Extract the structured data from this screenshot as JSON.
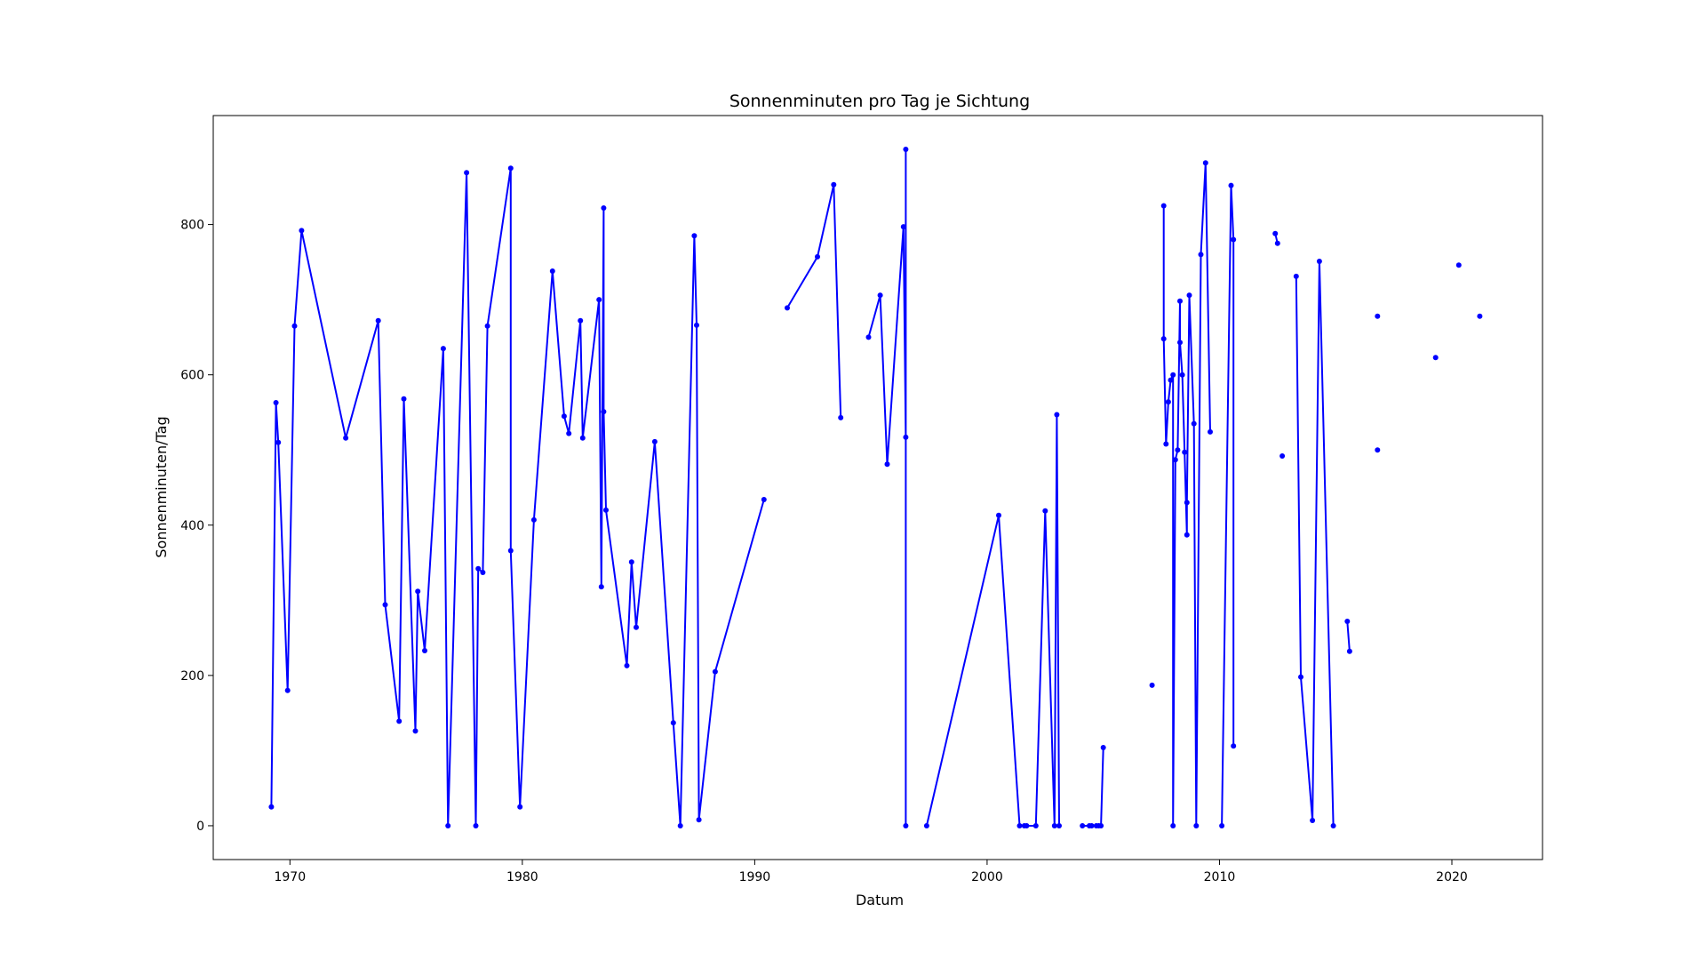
{
  "chart_data": {
    "type": "line",
    "title": "Sonnenminuten pro Tag je Sichtung",
    "xlabel": "Datum",
    "ylabel": "Sonnenminuten/Tag",
    "xlim": [
      1966.7,
      2023.9
    ],
    "ylim": [
      -45,
      945
    ],
    "x_ticks": [
      1970,
      1980,
      1990,
      2000,
      2010,
      2020
    ],
    "y_ticks": [
      0,
      200,
      400,
      600,
      800
    ],
    "grid": false,
    "legend": "none",
    "series_color": "#0000ff",
    "note_gaps": "segments are separated where the original plot shows breaks in the line",
    "segments": [
      [
        [
          1969.2,
          25
        ],
        [
          1969.4,
          563
        ],
        [
          1969.5,
          510
        ],
        [
          1969.9,
          180
        ],
        [
          1970.2,
          665
        ],
        [
          1970.5,
          792
        ],
        [
          1972.4,
          516
        ],
        [
          1973.8,
          672
        ],
        [
          1974.1,
          294
        ],
        [
          1974.7,
          139
        ],
        [
          1974.9,
          568
        ],
        [
          1975.4,
          126
        ],
        [
          1975.5,
          312
        ],
        [
          1975.8,
          233
        ],
        [
          1976.6,
          635
        ],
        [
          1976.8,
          0
        ],
        [
          1977.6,
          869
        ],
        [
          1978.0,
          0
        ],
        [
          1978.1,
          342
        ],
        [
          1978.3,
          337
        ],
        [
          1978.5,
          665
        ],
        [
          1979.5,
          875
        ],
        [
          1979.5,
          366
        ],
        [
          1979.9,
          25
        ],
        [
          1980.5,
          407
        ],
        [
          1981.3,
          738
        ],
        [
          1981.8,
          545
        ],
        [
          1982.0,
          522
        ],
        [
          1982.5,
          672
        ],
        [
          1982.6,
          516
        ],
        [
          1983.3,
          700
        ],
        [
          1983.4,
          318
        ],
        [
          1983.5,
          822
        ],
        [
          1983.5,
          551
        ],
        [
          1983.6,
          420
        ],
        [
          1984.5,
          213
        ],
        [
          1984.7,
          351
        ],
        [
          1984.9,
          264
        ],
        [
          1985.7,
          511
        ],
        [
          1986.5,
          137
        ],
        [
          1986.8,
          0
        ],
        [
          1987.4,
          785
        ],
        [
          1987.5,
          666
        ],
        [
          1987.6,
          8
        ],
        [
          1988.3,
          205
        ],
        [
          1990.4,
          434
        ]
      ],
      [
        [
          1991.4,
          689
        ],
        [
          1992.7,
          757
        ],
        [
          1993.4,
          853
        ],
        [
          1993.7,
          543
        ]
      ],
      [
        [
          1994.9,
          650
        ],
        [
          1995.4,
          706
        ],
        [
          1995.7,
          481
        ],
        [
          1996.4,
          797
        ],
        [
          1996.5,
          517
        ],
        [
          1996.5,
          900
        ],
        [
          1996.5,
          0
        ]
      ],
      [
        [
          1997.4,
          0
        ],
        [
          2000.5,
          413
        ],
        [
          2001.4,
          0
        ],
        [
          2001.6,
          0
        ],
        [
          2001.7,
          0
        ],
        [
          2002.1,
          0
        ],
        [
          2002.5,
          419
        ],
        [
          2002.9,
          0
        ],
        [
          2003.0,
          547
        ],
        [
          2003.1,
          0
        ]
      ],
      [
        [
          2004.1,
          0
        ],
        [
          2004.4,
          0
        ],
        [
          2004.5,
          0
        ],
        [
          2004.7,
          0
        ],
        [
          2004.8,
          0
        ],
        [
          2004.9,
          0
        ],
        [
          2005.0,
          104
        ]
      ],
      [
        [
          2007.1,
          187
        ]
      ],
      [
        [
          2007.6,
          825
        ],
        [
          2007.6,
          648
        ],
        [
          2007.7,
          508
        ],
        [
          2007.8,
          564
        ],
        [
          2007.9,
          593
        ],
        [
          2008.0,
          600
        ],
        [
          2008.0,
          0
        ],
        [
          2008.1,
          487
        ],
        [
          2008.2,
          500
        ],
        [
          2008.3,
          698
        ],
        [
          2008.3,
          643
        ],
        [
          2008.4,
          600
        ],
        [
          2008.5,
          497
        ],
        [
          2008.6,
          387
        ],
        [
          2008.6,
          430
        ],
        [
          2008.7,
          706
        ],
        [
          2008.9,
          535
        ],
        [
          2009.0,
          0
        ],
        [
          2009.2,
          760
        ],
        [
          2009.4,
          882
        ],
        [
          2009.6,
          524
        ]
      ],
      [
        [
          2010.1,
          0
        ],
        [
          2010.5,
          852
        ],
        [
          2010.6,
          780
        ],
        [
          2010.6,
          106
        ]
      ],
      [
        [
          2012.4,
          788
        ],
        [
          2012.5,
          775
        ]
      ],
      [
        [
          2012.7,
          492
        ]
      ],
      [
        [
          2013.3,
          731
        ],
        [
          2013.5,
          198
        ],
        [
          2014.0,
          7
        ],
        [
          2014.3,
          751
        ],
        [
          2014.9,
          0
        ]
      ],
      [
        [
          2015.5,
          272
        ],
        [
          2015.6,
          232
        ]
      ],
      [
        [
          2016.8,
          678
        ]
      ],
      [
        [
          2016.8,
          500
        ]
      ],
      [
        [
          2019.3,
          623
        ]
      ],
      [
        [
          2020.3,
          746
        ]
      ],
      [
        [
          2021.2,
          678
        ]
      ]
    ]
  }
}
